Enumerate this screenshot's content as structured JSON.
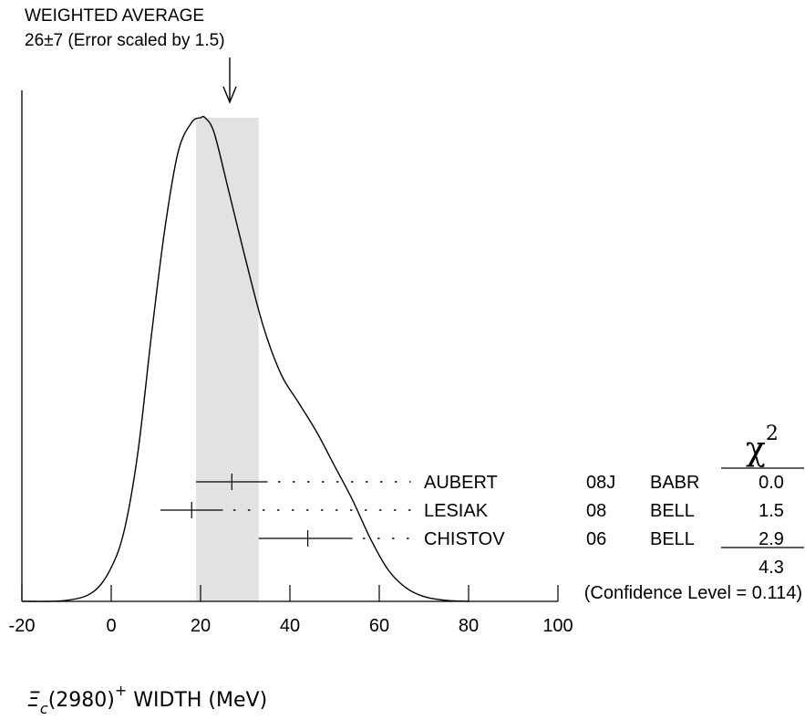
{
  "chart_data": {
    "type": "ideogram",
    "title_line1": "WEIGHTED AVERAGE",
    "title_line2": "26±7 (Error scaled by 1.5)",
    "weighted_average": {
      "value": 26,
      "error": 7,
      "scale_factor": 1.5
    },
    "xlabel_symbol": "Ξ",
    "xlabel_sub": "c",
    "xlabel_mid": "(2980)",
    "xlabel_sup": "+",
    "xlabel_tail": " WIDTH (MeV)",
    "xlim": [
      -20,
      100
    ],
    "xticks": [
      "-20",
      "0",
      "20",
      "40",
      "60",
      "80",
      "100"
    ],
    "measurements": [
      {
        "author": "AUBERT",
        "year": "08J",
        "experiment": "BABR",
        "chi2": "0.0",
        "value": 27,
        "low": 19,
        "high": 35
      },
      {
        "author": "LESIAK",
        "year": "08",
        "experiment": "BELL",
        "chi2": "1.5",
        "value": 18,
        "low": 11,
        "high": 25
      },
      {
        "author": "CHISTOV",
        "year": "06",
        "experiment": "BELL",
        "chi2": "2.9",
        "value": 44,
        "low": 33,
        "high": 54
      }
    ],
    "chi2_header": "χ",
    "chi2_header_sup": "2",
    "chi2_total": "4.3",
    "confidence_level": "(Confidence Level = 0.114)",
    "ideogram_curve": {
      "x": [
        -20,
        -10,
        -4,
        0,
        3,
        6,
        9,
        12,
        15,
        18,
        20,
        21,
        23,
        26,
        30,
        34,
        38,
        42,
        46,
        50,
        54,
        58,
        62,
        66,
        70,
        75,
        80
      ],
      "y": [
        0,
        0.002,
        0.02,
        0.07,
        0.15,
        0.31,
        0.55,
        0.77,
        0.93,
        0.99,
        1.0,
        1.0,
        0.97,
        0.86,
        0.71,
        0.57,
        0.47,
        0.41,
        0.35,
        0.28,
        0.21,
        0.13,
        0.065,
        0.028,
        0.01,
        0.002,
        0
      ]
    }
  }
}
